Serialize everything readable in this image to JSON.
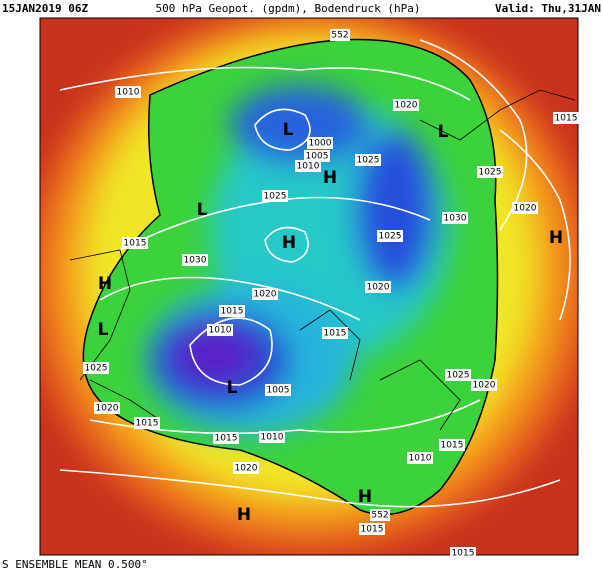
{
  "header": {
    "run": "15JAN2019 06Z",
    "title": "500 hPa Geopot. (gpdm), Bodendruck (hPa)",
    "valid": "Valid: Thu,31JAN"
  },
  "map": {
    "labels": [
      "552",
      "1010",
      "L",
      "1000",
      "1005",
      "1010",
      "1025",
      "1020",
      "L",
      "H",
      "1015",
      "1025",
      "1020",
      "H",
      "L",
      "1025",
      "1030",
      "1025",
      "H",
      "1015",
      "1030",
      "H",
      "1020",
      "1020",
      "1015",
      "L",
      "1015",
      "1010",
      "L",
      "1005",
      "1025",
      "1025",
      "1020",
      "1020",
      "1015",
      "1015",
      "1010",
      "1015",
      "1010",
      "1020",
      "H",
      "H",
      "552",
      "1015",
      "1015"
    ]
  },
  "footer": "S ENSEMBLE MEAN 0.500°"
}
